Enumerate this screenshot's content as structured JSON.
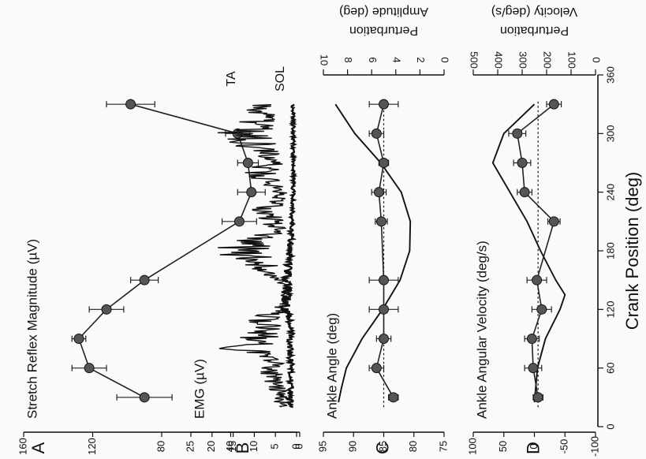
{
  "figure": {
    "xlabel": "Crank Position (deg)",
    "x_ticks": [
      0,
      60,
      120,
      180,
      240,
      300,
      360
    ]
  },
  "chart_data": [
    {
      "panel": "A",
      "type": "line",
      "ylabel": "Stretch Reflex Magnitude (µV)",
      "ylim": [
        0,
        160
      ],
      "yticks": [
        0,
        40,
        80,
        120,
        160
      ],
      "series": [
        {
          "x": [
            30,
            60,
            90,
            120,
            150,
            210,
            240,
            270,
            300,
            330
          ],
          "y": [
            90,
            122,
            128,
            112,
            90,
            35,
            28,
            30,
            36,
            98
          ],
          "err": [
            16,
            10,
            4,
            10,
            8,
            10,
            8,
            6,
            7,
            14
          ]
        }
      ]
    },
    {
      "panel": "B",
      "type": "line",
      "ylabel": "EMG (µV)",
      "ylim": [
        0,
        25
      ],
      "yticks": [
        0,
        5,
        10,
        15,
        20,
        25
      ],
      "series": [
        {
          "name": "TA",
          "label": "TA",
          "envelope": [
            [
              20,
              5
            ],
            [
              40,
              6
            ],
            [
              60,
              9
            ],
            [
              70,
              7
            ],
            [
              80,
              17
            ],
            [
              90,
              13
            ],
            [
              100,
              9
            ],
            [
              110,
              12
            ],
            [
              120,
              6
            ],
            [
              130,
              4
            ],
            [
              140,
              3
            ],
            [
              150,
              5
            ],
            [
              160,
              9
            ],
            [
              170,
              13
            ],
            [
              180,
              19
            ],
            [
              190,
              14
            ],
            [
              200,
              7
            ],
            [
              210,
              8
            ],
            [
              220,
              11
            ],
            [
              230,
              6
            ],
            [
              240,
              5
            ],
            [
              250,
              9
            ],
            [
              260,
              12
            ],
            [
              270,
              8
            ],
            [
              280,
              12
            ],
            [
              290,
              14
            ],
            [
              300,
              18
            ],
            [
              310,
              13
            ],
            [
              320,
              12
            ],
            [
              330,
              11
            ]
          ]
        },
        {
          "name": "SOL",
          "label": "SOL",
          "envelope": [
            [
              20,
              2
            ],
            [
              40,
              2
            ],
            [
              60,
              1.5
            ],
            [
              80,
              2
            ],
            [
              100,
              1.5
            ],
            [
              120,
              3
            ],
            [
              140,
              3.5
            ],
            [
              160,
              2.5
            ],
            [
              180,
              2
            ],
            [
              200,
              1.5
            ],
            [
              220,
              1.2
            ],
            [
              240,
              1
            ],
            [
              260,
              1
            ],
            [
              280,
              1
            ],
            [
              300,
              1
            ],
            [
              330,
              1
            ]
          ]
        }
      ]
    },
    {
      "panel": "C",
      "type": "line",
      "ylabel": "Ankle Angle (deg)",
      "ylim": [
        75,
        95
      ],
      "yticks": [
        75,
        80,
        85,
        90,
        95
      ],
      "right_label": [
        "Perturbation",
        "Amplitude (deg)"
      ],
      "right_ylim": [
        0,
        10
      ],
      "right_yticks": [
        0,
        2,
        4,
        6,
        8,
        10
      ],
      "ankle_angle": [
        [
          25,
          92.5
        ],
        [
          40,
          92
        ],
        [
          60,
          91.2
        ],
        [
          90,
          88.6
        ],
        [
          120,
          85.2
        ],
        [
          150,
          82.3
        ],
        [
          180,
          80.7
        ],
        [
          210,
          80.6
        ],
        [
          240,
          82.1
        ],
        [
          270,
          85.5
        ],
        [
          300,
          89.8
        ],
        [
          330,
          93
        ]
      ],
      "reference_line": 5,
      "series": [
        {
          "x": [
            30,
            60,
            90,
            120,
            150,
            210,
            240,
            270,
            300,
            330
          ],
          "y": [
            4.2,
            5.6,
            5.0,
            5.0,
            5.0,
            5.2,
            5.4,
            5.0,
            5.6,
            5.0
          ],
          "err": [
            0.4,
            0.6,
            0.6,
            1.2,
            1.2,
            0.5,
            0.6,
            0.4,
            0.6,
            1.2
          ]
        }
      ]
    },
    {
      "panel": "D",
      "type": "line",
      "ylabel": "Ankle Angular Velocity (deg/s)",
      "ylim": [
        -100,
        100
      ],
      "yticks": [
        -100,
        -50,
        0,
        50,
        100
      ],
      "right_label": [
        "Perturbation",
        "Velocity (deg/s)"
      ],
      "right_ylim": [
        0,
        500
      ],
      "right_yticks": [
        0,
        100,
        200,
        300,
        400,
        500
      ],
      "angular_velocity": [
        [
          25,
          0
        ],
        [
          60,
          -5
        ],
        [
          90,
          -18
        ],
        [
          120,
          -42
        ],
        [
          135,
          -50
        ],
        [
          150,
          -35
        ],
        [
          180,
          -10
        ],
        [
          210,
          12
        ],
        [
          240,
          40
        ],
        [
          270,
          68
        ],
        [
          300,
          50
        ],
        [
          330,
          0
        ]
      ],
      "reference_line": 235,
      "series": [
        {
          "x": [
            30,
            60,
            90,
            120,
            150,
            210,
            240,
            270,
            300,
            330
          ],
          "y": [
            235,
            255,
            260,
            220,
            240,
            170,
            290,
            300,
            320,
            170
          ],
          "err": [
            20,
            35,
            30,
            40,
            40,
            25,
            30,
            35,
            35,
            30
          ]
        }
      ]
    }
  ]
}
